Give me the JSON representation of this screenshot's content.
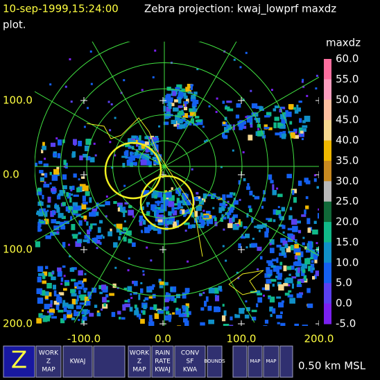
{
  "header": {
    "time": "10-sep-1999,15:24:00",
    "title": "Zebra projection: kwaj_lowprf maxdz",
    "title_cont": "plot."
  },
  "plot": {
    "y_labels": [
      "100.0",
      "0.0",
      "100.0",
      "200.0"
    ],
    "x_labels": [
      "-100.0",
      "0.0",
      "100.0",
      "200.0"
    ]
  },
  "colorbar": {
    "title": "maxdz",
    "labels": [
      "60.0",
      "55.0",
      "50.0",
      "45.0",
      "40.0",
      "35.0",
      "30.0",
      "25.0",
      "20.0",
      "15.0",
      "10.0",
      "5.0",
      "0.0",
      "-5.0"
    ],
    "colors": [
      "#ff6fa0",
      "#ff9ec0",
      "#ffc0a0",
      "#f6d890",
      "#f0b800",
      "#c88a20",
      "#b8b8b8",
      "#106838",
      "#10b888",
      "#1090c8",
      "#1460f0",
      "#5a40f0",
      "#7a20f0"
    ]
  },
  "toolbar": {
    "buttons": [
      {
        "lines": [
          "Z"
        ]
      },
      {
        "lines": [
          "WORK",
          "Z",
          "MAP"
        ]
      },
      {
        "lines": [
          "KWAJ"
        ]
      },
      {},
      {
        "lines": [
          "WORK",
          "Z",
          "MAP"
        ]
      },
      {
        "lines": [
          "RAIN",
          "RATE",
          "KWAJ"
        ]
      },
      {
        "lines": [
          "CONV",
          "SF",
          "KWA"
        ]
      },
      {
        "lines": [
          "BOUNDS"
        ]
      },
      {},
      {
        "lines": [
          "MAP"
        ]
      },
      {
        "lines": [
          "MAP"
        ]
      },
      {}
    ],
    "status": "0.50 km MSL"
  }
}
